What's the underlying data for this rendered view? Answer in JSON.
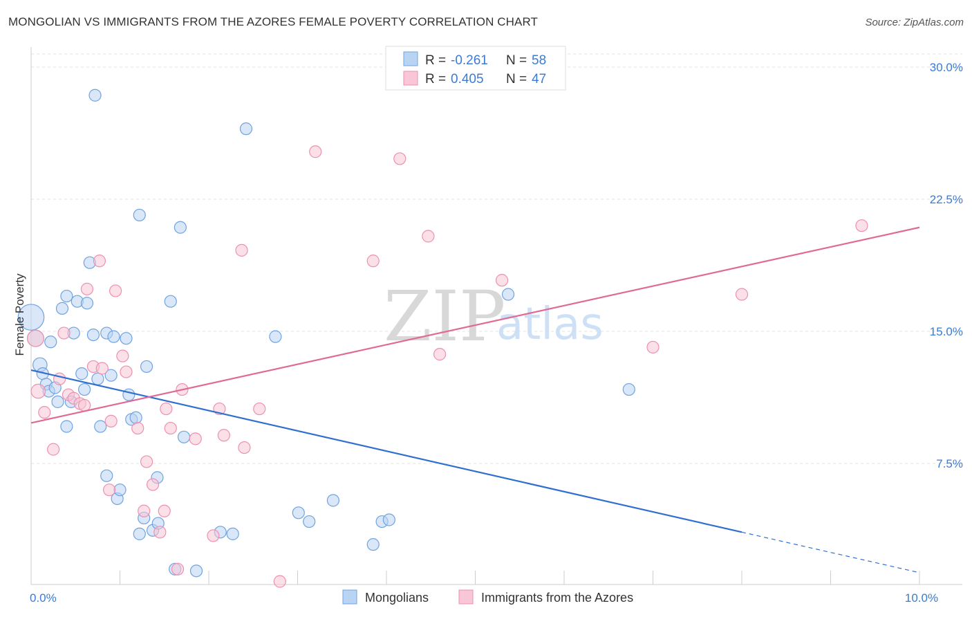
{
  "title": "MONGOLIAN VS IMMIGRANTS FROM THE AZORES FEMALE POVERTY CORRELATION CHART",
  "source": "Source: ZipAtlas.com",
  "watermark": {
    "zip": "ZIP",
    "atlas": "atlas"
  },
  "chart_data": {
    "type": "scatter",
    "title": "MONGOLIAN VS IMMIGRANTS FROM THE AZORES FEMALE POVERTY CORRELATION CHART",
    "xlabel": "",
    "ylabel": "Female Poverty",
    "xlim": [
      0,
      10
    ],
    "ylim": [
      0,
      30
    ],
    "x_ticks": [
      0,
      10
    ],
    "x_tick_labels": [
      "0.0%",
      "10.0%"
    ],
    "y_ticks": [
      7.5,
      15.0,
      22.5,
      30.0
    ],
    "y_tick_labels": [
      "7.5%",
      "15.0%",
      "22.5%",
      "30.0%"
    ],
    "grid": true,
    "legend": {
      "rows": [
        {
          "r_label": "R =",
          "r_value": "-0.261",
          "n_label": "N =",
          "n_value": "58"
        },
        {
          "r_label": "R =",
          "r_value": "0.405",
          "n_label": "N =",
          "n_value": "47"
        }
      ]
    },
    "series": [
      {
        "name": "Mongolians",
        "color": "#6fa3e0",
        "fill": "#b9d3f2",
        "line_color": "#2f6fd0",
        "trend": {
          "x0": 0.0,
          "y0": 12.8,
          "x1": 8.0,
          "y1": 3.6,
          "dash_to_x": 10.0,
          "dash_to_y": 1.3
        },
        "points": [
          [
            0.0,
            15.8,
            22
          ],
          [
            0.05,
            14.6,
            14
          ],
          [
            0.1,
            13.1,
            12
          ],
          [
            0.13,
            12.6,
            10
          ],
          [
            0.17,
            12.0,
            10
          ],
          [
            0.2,
            11.6,
            10
          ],
          [
            0.22,
            14.4,
            10
          ],
          [
            0.27,
            11.8,
            10
          ],
          [
            0.3,
            11.0,
            10
          ],
          [
            0.35,
            16.3,
            10
          ],
          [
            0.4,
            17.0,
            10
          ],
          [
            0.4,
            9.6,
            10
          ],
          [
            0.45,
            11.0,
            10
          ],
          [
            0.48,
            14.9,
            10
          ],
          [
            0.52,
            16.7,
            10
          ],
          [
            0.57,
            12.6,
            10
          ],
          [
            0.6,
            11.7,
            10
          ],
          [
            0.63,
            16.6,
            10
          ],
          [
            0.66,
            18.9,
            10
          ],
          [
            0.7,
            14.8,
            10
          ],
          [
            0.72,
            28.4,
            10
          ],
          [
            0.75,
            12.3,
            10
          ],
          [
            0.78,
            9.6,
            10
          ],
          [
            0.85,
            14.9,
            10
          ],
          [
            0.9,
            12.5,
            10
          ],
          [
            0.85,
            6.8,
            10
          ],
          [
            0.93,
            14.7,
            10
          ],
          [
            0.97,
            5.5,
            10
          ],
          [
            1.0,
            6.0,
            10
          ],
          [
            1.07,
            14.6,
            10
          ],
          [
            1.1,
            11.4,
            10
          ],
          [
            1.13,
            10.0,
            10
          ],
          [
            1.18,
            10.1,
            10
          ],
          [
            1.22,
            3.5,
            10
          ],
          [
            1.22,
            21.6,
            10
          ],
          [
            1.27,
            4.4,
            10
          ],
          [
            1.3,
            13.0,
            10
          ],
          [
            1.37,
            3.7,
            10
          ],
          [
            1.42,
            6.7,
            10
          ],
          [
            1.43,
            4.1,
            10
          ],
          [
            1.57,
            16.7,
            10
          ],
          [
            1.62,
            1.5,
            10
          ],
          [
            1.68,
            20.9,
            10
          ],
          [
            1.72,
            9.0,
            10
          ],
          [
            1.86,
            1.4,
            10
          ],
          [
            2.13,
            3.6,
            10
          ],
          [
            2.27,
            3.5,
            10
          ],
          [
            2.42,
            26.5,
            10
          ],
          [
            2.75,
            14.7,
            10
          ],
          [
            3.01,
            4.7,
            10
          ],
          [
            3.13,
            4.2,
            10
          ],
          [
            3.4,
            5.4,
            10
          ],
          [
            3.85,
            2.9,
            10
          ],
          [
            3.95,
            4.2,
            10
          ],
          [
            4.03,
            4.3,
            10
          ],
          [
            5.37,
            17.1,
            10
          ],
          [
            6.73,
            11.7,
            10
          ]
        ]
      },
      {
        "name": "Immigrants from the Azores",
        "color": "#ee8fb0",
        "fill": "#f8c6d6",
        "line_color": "#e06a93",
        "trend": {
          "x0": 0.0,
          "y0": 9.8,
          "x1": 10.0,
          "y1": 20.9
        },
        "points": [
          [
            0.05,
            14.6,
            14
          ],
          [
            0.08,
            11.6,
            12
          ],
          [
            0.15,
            10.4,
            10
          ],
          [
            0.25,
            8.3,
            10
          ],
          [
            0.32,
            12.3,
            10
          ],
          [
            0.37,
            14.9,
            10
          ],
          [
            0.42,
            11.4,
            10
          ],
          [
            0.48,
            11.2,
            10
          ],
          [
            0.55,
            10.9,
            10
          ],
          [
            0.6,
            10.8,
            10
          ],
          [
            0.63,
            17.4,
            10
          ],
          [
            0.7,
            13.0,
            10
          ],
          [
            0.77,
            19.0,
            10
          ],
          [
            0.8,
            12.9,
            10
          ],
          [
            0.88,
            6.0,
            10
          ],
          [
            0.9,
            9.9,
            10
          ],
          [
            0.95,
            17.3,
            10
          ],
          [
            1.03,
            13.6,
            10
          ],
          [
            1.07,
            12.7,
            10
          ],
          [
            1.2,
            9.5,
            10
          ],
          [
            1.27,
            4.8,
            10
          ],
          [
            1.3,
            7.6,
            10
          ],
          [
            1.37,
            6.3,
            10
          ],
          [
            1.45,
            3.6,
            10
          ],
          [
            1.5,
            4.8,
            10
          ],
          [
            1.52,
            10.6,
            10
          ],
          [
            1.57,
            9.5,
            10
          ],
          [
            1.65,
            1.5,
            10
          ],
          [
            1.7,
            11.7,
            10
          ],
          [
            1.85,
            8.9,
            10
          ],
          [
            2.05,
            3.4,
            10
          ],
          [
            2.12,
            10.6,
            10
          ],
          [
            2.17,
            9.1,
            10
          ],
          [
            2.37,
            19.6,
            10
          ],
          [
            2.4,
            8.4,
            10
          ],
          [
            2.57,
            10.6,
            10
          ],
          [
            2.8,
            0.8,
            10
          ],
          [
            3.2,
            25.2,
            10
          ],
          [
            3.85,
            19.0,
            10
          ],
          [
            4.15,
            24.8,
            10
          ],
          [
            4.47,
            20.4,
            10
          ],
          [
            4.6,
            13.7,
            10
          ],
          [
            5.3,
            17.9,
            10
          ],
          [
            7.0,
            14.1,
            10
          ],
          [
            8.0,
            17.1,
            10
          ],
          [
            9.35,
            21.0,
            10
          ]
        ]
      }
    ]
  },
  "bottom_legend": [
    {
      "label": "Mongolians"
    },
    {
      "label": "Immigrants from the Azores"
    }
  ]
}
